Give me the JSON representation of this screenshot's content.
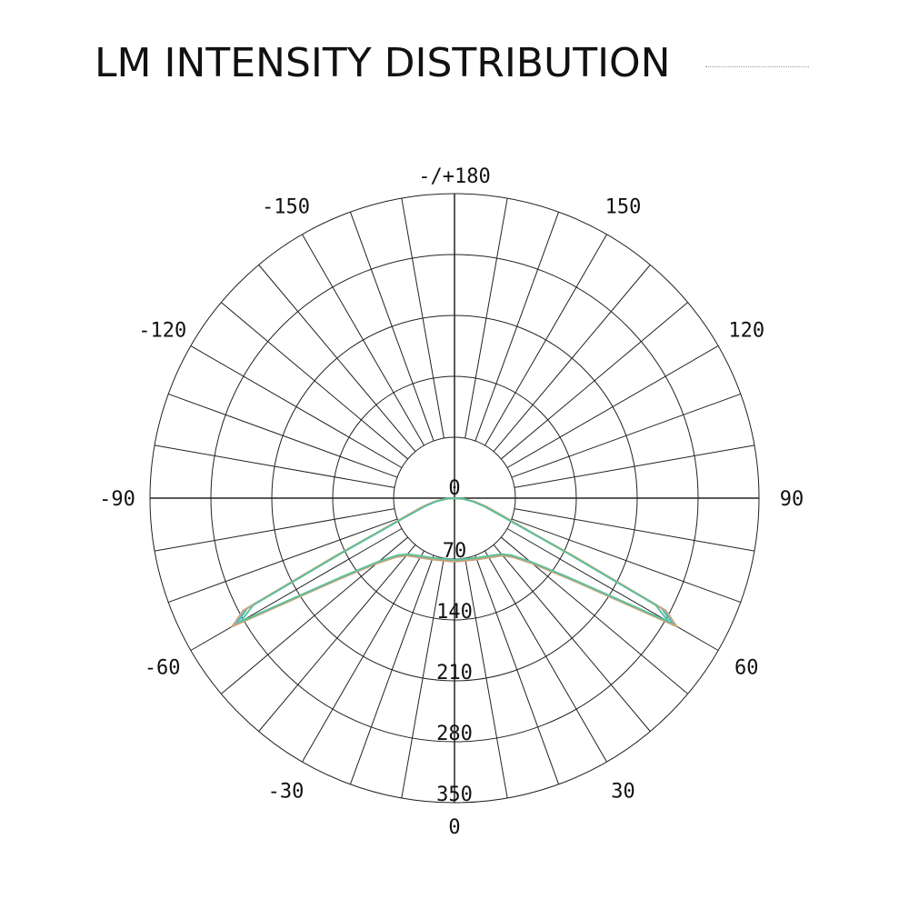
{
  "page": {
    "title": "LM INTENSITY DISTRIBUTION"
  },
  "chart_data": {
    "type": "polar",
    "title": "LM INTENSITY DISTRIBUTION",
    "angle_labels": [
      {
        "angle": 0,
        "text": "0"
      },
      {
        "angle": 30,
        "text": "30"
      },
      {
        "angle": 60,
        "text": "60"
      },
      {
        "angle": 90,
        "text": "90"
      },
      {
        "angle": 120,
        "text": "120"
      },
      {
        "angle": 150,
        "text": "150"
      },
      {
        "angle": 180,
        "text": "-/+180"
      },
      {
        "angle": -30,
        "text": "-30"
      },
      {
        "angle": -60,
        "text": "-60"
      },
      {
        "angle": -90,
        "text": "-90"
      },
      {
        "angle": -120,
        "text": "-120"
      },
      {
        "angle": -150,
        "text": "-150"
      }
    ],
    "radial_ticks": [
      0,
      70,
      140,
      210,
      280,
      350
    ],
    "rmax": 350,
    "spoke_step_deg": 10,
    "colors": {
      "grid": "#222222",
      "c0": "#3fb6c8",
      "c90": "#5ec09a",
      "c_alt": "#c9a27a"
    },
    "series": [
      {
        "key": "c0",
        "angles": [
          -90,
          -85,
          -80,
          -75,
          -70,
          -68,
          -66,
          -64,
          -62,
          -60,
          -55,
          -50,
          -45,
          -40,
          -30,
          -20,
          -10,
          0,
          10,
          20,
          30,
          40,
          45,
          50,
          55,
          60,
          62,
          64,
          66,
          68,
          70,
          75,
          80,
          85,
          90
        ],
        "values": [
          0,
          10,
          22,
          35,
          55,
          70,
          95,
          150,
          270,
          290,
          160,
          115,
          95,
          85,
          78,
          74,
          72,
          72,
          72,
          74,
          78,
          85,
          95,
          115,
          160,
          290,
          270,
          150,
          95,
          70,
          55,
          35,
          22,
          10,
          0
        ]
      },
      {
        "key": "c_alt",
        "angles": [
          -90,
          -85,
          -80,
          -75,
          -70,
          -68,
          -66,
          -64,
          -62,
          -60,
          -55,
          -50,
          -45,
          -40,
          -30,
          -20,
          -10,
          0,
          10,
          20,
          30,
          40,
          45,
          50,
          55,
          60,
          62,
          64,
          66,
          68,
          70,
          75,
          80,
          85,
          90
        ],
        "values": [
          0,
          11,
          24,
          38,
          58,
          73,
          98,
          155,
          275,
          295,
          163,
          117,
          96,
          86,
          79,
          75,
          73,
          73,
          73,
          75,
          79,
          86,
          96,
          117,
          163,
          295,
          275,
          155,
          98,
          73,
          58,
          38,
          24,
          11,
          0
        ]
      },
      {
        "key": "c90",
        "angles": [
          -90,
          -85,
          -80,
          -75,
          -70,
          -68,
          -66,
          -64,
          -62,
          -60,
          -55,
          -50,
          -45,
          -40,
          -30,
          -20,
          -10,
          0,
          10,
          20,
          30,
          40,
          45,
          50,
          55,
          60,
          62,
          64,
          66,
          68,
          70,
          75,
          80,
          85,
          90
        ],
        "values": [
          0,
          9,
          21,
          34,
          53,
          68,
          92,
          145,
          262,
          284,
          157,
          113,
          93,
          84,
          77,
          73,
          71,
          71,
          71,
          73,
          77,
          84,
          93,
          113,
          157,
          284,
          262,
          145,
          92,
          68,
          53,
          34,
          21,
          9,
          0
        ]
      }
    ]
  }
}
